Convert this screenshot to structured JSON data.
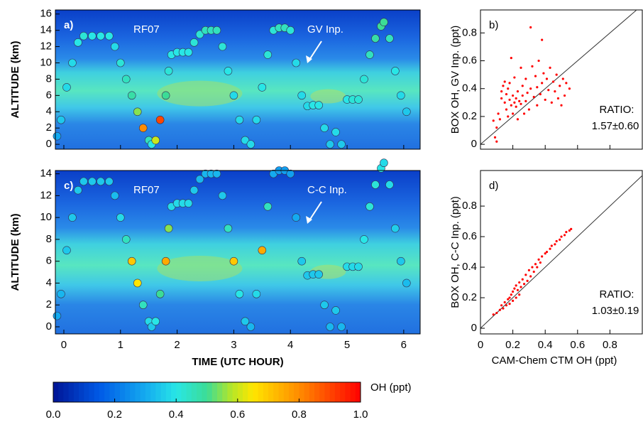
{
  "chart_data": [
    {
      "type": "curtain",
      "panel_label": "a)",
      "flight": "RF07",
      "annotation": "GV Inp.",
      "ylabel": "ALTITUDE (km)",
      "xlim": [
        -0.15,
        6.29
      ],
      "xticks": [
        0,
        1,
        2,
        3,
        4,
        5,
        6
      ],
      "show_xtick_labels": false,
      "ylim": [
        -0.6,
        16.5
      ],
      "yticks": [
        0,
        2,
        4,
        6,
        8,
        10,
        12,
        14,
        16
      ],
      "x": [
        -0.12,
        -0.05,
        0.05,
        0.15,
        0.25,
        0.35,
        0.5,
        0.65,
        0.8,
        0.9,
        1.0,
        1.1,
        1.2,
        1.3,
        1.4,
        1.5,
        1.55,
        1.62,
        1.7,
        1.8,
        1.85,
        1.9,
        2.0,
        2.1,
        2.2,
        2.3,
        2.4,
        2.5,
        2.6,
        2.7,
        2.8,
        2.9,
        3.0,
        3.1,
        3.2,
        3.3,
        3.4,
        3.5,
        3.6,
        3.7,
        3.8,
        3.9,
        4.0,
        4.1,
        4.2,
        4.3,
        4.4,
        4.5,
        4.6,
        4.7,
        4.8,
        4.9,
        5.0,
        5.1,
        5.2,
        5.3,
        5.4,
        5.5,
        5.6,
        5.65,
        5.75,
        5.85,
        5.95,
        6.05
      ],
      "altitude": [
        1,
        3,
        7,
        10,
        12.5,
        13.3,
        13.3,
        13.3,
        13.3,
        12,
        10,
        8,
        6,
        4,
        2,
        0.5,
        0,
        0.5,
        3,
        6,
        9,
        11,
        11.3,
        11.3,
        11.3,
        12.5,
        13.5,
        14,
        14,
        14,
        12,
        9,
        6,
        3,
        0.5,
        0,
        3,
        7,
        11,
        14,
        14.3,
        14.3,
        14,
        10,
        6,
        4.7,
        4.8,
        4.8,
        2,
        0,
        1.5,
        0,
        5.5,
        5.5,
        5.5,
        8,
        11,
        13,
        14.5,
        15,
        13,
        9,
        6,
        4
      ],
      "values": [
        0.3,
        0.35,
        0.38,
        0.38,
        0.4,
        0.42,
        0.4,
        0.4,
        0.4,
        0.38,
        0.42,
        0.45,
        0.48,
        0.55,
        0.8,
        0.45,
        0.4,
        0.6,
        0.9,
        0.5,
        0.42,
        0.4,
        0.4,
        0.4,
        0.4,
        0.42,
        0.42,
        0.45,
        0.45,
        0.45,
        0.42,
        0.4,
        0.38,
        0.38,
        0.38,
        0.38,
        0.38,
        0.4,
        0.42,
        0.42,
        0.45,
        0.45,
        0.42,
        0.38,
        0.38,
        0.38,
        0.4,
        0.4,
        0.38,
        0.35,
        0.38,
        0.35,
        0.4,
        0.42,
        0.42,
        0.42,
        0.45,
        0.48,
        0.5,
        0.5,
        0.45,
        0.4,
        0.38,
        0.35
      ]
    },
    {
      "type": "curtain",
      "panel_label": "c)",
      "flight": "RF07",
      "annotation": "C-C Inp.",
      "ylabel": "ALTITUDE (km)",
      "xlabel": "TIME (UTC HOUR)",
      "xlim": [
        -0.15,
        6.29
      ],
      "xticks": [
        0,
        1,
        2,
        3,
        4,
        5,
        6
      ],
      "show_xtick_labels": true,
      "ylim": [
        -0.65,
        14.3
      ],
      "yticks": [
        0,
        2,
        4,
        6,
        8,
        10,
        12,
        14
      ],
      "x": [
        -0.12,
        -0.05,
        0.05,
        0.15,
        0.25,
        0.35,
        0.5,
        0.65,
        0.8,
        0.9,
        1.0,
        1.1,
        1.2,
        1.3,
        1.4,
        1.5,
        1.55,
        1.62,
        1.7,
        1.8,
        1.85,
        1.9,
        2.0,
        2.1,
        2.2,
        2.3,
        2.4,
        2.5,
        2.6,
        2.7,
        2.8,
        2.9,
        3.0,
        3.1,
        3.2,
        3.3,
        3.4,
        3.5,
        3.6,
        3.7,
        3.8,
        3.9,
        4.0,
        4.1,
        4.2,
        4.3,
        4.4,
        4.5,
        4.6,
        4.7,
        4.8,
        4.9,
        5.0,
        5.1,
        5.2,
        5.3,
        5.4,
        5.5,
        5.6,
        5.65,
        5.75,
        5.85,
        5.95,
        6.05
      ],
      "altitude": [
        1,
        3,
        7,
        10,
        12.5,
        13.3,
        13.3,
        13.3,
        13.3,
        12,
        10,
        8,
        6,
        4,
        2,
        0.5,
        0,
        0.5,
        3,
        6,
        9,
        11,
        11.3,
        11.3,
        11.3,
        12.5,
        13.5,
        14,
        14,
        14,
        12,
        9,
        6,
        3,
        0.5,
        0,
        3,
        7,
        11,
        14,
        14.3,
        14.3,
        14,
        10,
        6,
        4.7,
        4.8,
        4.8,
        2,
        0,
        1.5,
        0,
        5.5,
        5.5,
        5.5,
        8,
        11,
        13,
        14.5,
        15,
        13,
        9,
        6,
        4
      ],
      "values": [
        0.3,
        0.32,
        0.35,
        0.35,
        0.35,
        0.35,
        0.35,
        0.35,
        0.35,
        0.33,
        0.38,
        0.45,
        0.7,
        0.65,
        0.45,
        0.38,
        0.35,
        0.4,
        0.5,
        0.75,
        0.55,
        0.38,
        0.38,
        0.38,
        0.38,
        0.35,
        0.32,
        0.32,
        0.32,
        0.32,
        0.35,
        0.45,
        0.7,
        0.4,
        0.35,
        0.32,
        0.38,
        0.75,
        0.45,
        0.3,
        0.28,
        0.28,
        0.28,
        0.3,
        0.35,
        0.35,
        0.35,
        0.35,
        0.35,
        0.32,
        0.35,
        0.32,
        0.38,
        0.38,
        0.38,
        0.4,
        0.42,
        0.42,
        0.4,
        0.38,
        0.38,
        0.36,
        0.35,
        0.33
      ]
    },
    {
      "type": "scatter",
      "panel_label": "b)",
      "ylabel": "BOX OH, GV Inp. (ppt)",
      "color": "#ff0000",
      "one_to_one": true,
      "ratio_label": "RATIO:",
      "ratio": "1.57±0.60",
      "xlim": [
        0,
        1.0
      ],
      "xticks": [
        0,
        0.2,
        0.4,
        0.6,
        0.8
      ],
      "show_xtick_labels": false,
      "ylim": [
        -0.035,
        0.965
      ],
      "yticks": [
        0,
        0.2,
        0.4,
        0.6,
        0.8
      ],
      "x": [
        0.08,
        0.09,
        0.1,
        0.1,
        0.11,
        0.12,
        0.13,
        0.13,
        0.14,
        0.15,
        0.15,
        0.16,
        0.16,
        0.17,
        0.17,
        0.18,
        0.18,
        0.19,
        0.19,
        0.2,
        0.2,
        0.21,
        0.21,
        0.22,
        0.22,
        0.23,
        0.23,
        0.24,
        0.25,
        0.25,
        0.26,
        0.26,
        0.27,
        0.28,
        0.28,
        0.29,
        0.3,
        0.31,
        0.31,
        0.32,
        0.33,
        0.34,
        0.35,
        0.35,
        0.36,
        0.37,
        0.38,
        0.38,
        0.39,
        0.4,
        0.41,
        0.42,
        0.43,
        0.44,
        0.45,
        0.46,
        0.47,
        0.48,
        0.49,
        0.5,
        0.51,
        0.52,
        0.53,
        0.55
      ],
      "y": [
        0.17,
        0.05,
        0.02,
        0.12,
        0.22,
        0.18,
        0.33,
        0.38,
        0.42,
        0.3,
        0.45,
        0.25,
        0.36,
        0.4,
        0.2,
        0.44,
        0.32,
        0.62,
        0.28,
        0.35,
        0.22,
        0.3,
        0.48,
        0.33,
        0.27,
        0.38,
        0.18,
        0.31,
        0.55,
        0.29,
        0.42,
        0.35,
        0.22,
        0.31,
        0.47,
        0.37,
        0.25,
        0.84,
        0.4,
        0.56,
        0.34,
        0.49,
        0.41,
        0.28,
        0.6,
        0.36,
        0.44,
        0.75,
        0.51,
        0.32,
        0.47,
        0.39,
        0.55,
        0.3,
        0.45,
        0.38,
        0.5,
        0.33,
        0.42,
        0.28,
        0.47,
        0.35,
        0.44,
        0.4
      ]
    },
    {
      "type": "scatter",
      "panel_label": "d)",
      "ylabel": "BOX OH, C-C Inp. (ppt)",
      "xlabel": "CAM-Chem CTM OH (ppt)",
      "color": "#ff0000",
      "one_to_one": true,
      "ratio_label": "RATIO:",
      "ratio": "1.03±0.19",
      "xlim": [
        0,
        1.0
      ],
      "xticks": [
        0,
        0.2,
        0.4,
        0.6,
        0.8
      ],
      "show_xtick_labels": true,
      "ylim": [
        -0.037,
        1.033
      ],
      "yticks": [
        0,
        0.2,
        0.4,
        0.6,
        0.8
      ],
      "x": [
        0.08,
        0.1,
        0.12,
        0.13,
        0.14,
        0.15,
        0.16,
        0.17,
        0.18,
        0.18,
        0.19,
        0.2,
        0.2,
        0.21,
        0.22,
        0.22,
        0.23,
        0.24,
        0.24,
        0.25,
        0.26,
        0.27,
        0.28,
        0.29,
        0.3,
        0.31,
        0.32,
        0.33,
        0.34,
        0.35,
        0.36,
        0.37,
        0.38,
        0.4,
        0.41,
        0.43,
        0.44,
        0.46,
        0.47,
        0.49,
        0.5,
        0.52,
        0.53,
        0.55,
        0.56
      ],
      "y": [
        0.09,
        0.1,
        0.12,
        0.15,
        0.13,
        0.17,
        0.15,
        0.19,
        0.16,
        0.2,
        0.22,
        0.18,
        0.24,
        0.26,
        0.2,
        0.28,
        0.25,
        0.3,
        0.22,
        0.27,
        0.32,
        0.29,
        0.35,
        0.31,
        0.38,
        0.34,
        0.4,
        0.37,
        0.42,
        0.4,
        0.45,
        0.43,
        0.47,
        0.49,
        0.5,
        0.52,
        0.54,
        0.55,
        0.57,
        0.58,
        0.6,
        0.61,
        0.63,
        0.64,
        0.65
      ]
    },
    {
      "type": "colorbar",
      "label": "OH (ppt)",
      "xlim": [
        0,
        1
      ],
      "xticks": [
        {
          "value": 0,
          "label": "0.0"
        },
        0.2,
        0.4,
        0.6,
        0.8,
        {
          "value": 1,
          "label": "1.0"
        }
      ]
    }
  ]
}
